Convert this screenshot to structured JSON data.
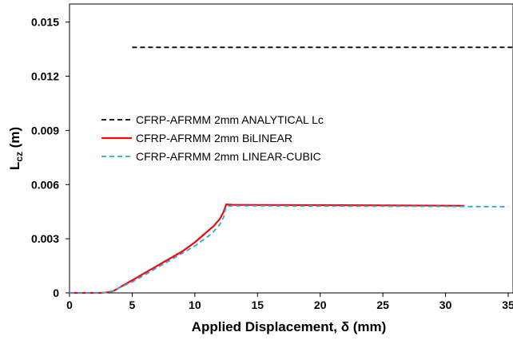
{
  "chart_data": {
    "type": "line",
    "title": "",
    "xlabel": "Applied Displacement, δ (mm)",
    "ylabel": "L",
    "ylabel_sub": "cz",
    "ylabel_unit": " (m)",
    "xlim": [
      0,
      35
    ],
    "ylim": [
      0,
      0.016
    ],
    "xticks": [
      0,
      5,
      10,
      15,
      20,
      25,
      30,
      35
    ],
    "xtick_labels": [
      "0",
      "5",
      "10",
      "15",
      "20",
      "25",
      "30",
      "35"
    ],
    "yticks": [
      0,
      0.003,
      0.006,
      0.009,
      0.012,
      0.015
    ],
    "ytick_labels": [
      "0",
      "0.003",
      "0.006",
      "0.009",
      "0.012",
      "0.015"
    ],
    "grid": false,
    "legend_position": "center-left",
    "series": [
      {
        "name": "CFRP-AFRMM 2mm ANALYTICAL Lc",
        "color": "#000000",
        "dash": "dashed",
        "x": [
          5,
          35.5
        ],
        "y": [
          0.0136,
          0.0136
        ]
      },
      {
        "name": "CFRP-AFRMM 2mm BiLINEAR",
        "color": "#ff0000",
        "dash": "solid",
        "x": [
          0,
          2.5,
          3,
          3.5,
          4,
          5,
          6,
          7,
          8,
          9,
          10,
          11,
          11.5,
          12,
          12.3,
          12.5,
          13,
          15,
          20,
          25,
          30,
          31.5
        ],
        "y": [
          0,
          0,
          3e-05,
          0.0001,
          0.0003,
          0.0007,
          0.0011,
          0.0015,
          0.0019,
          0.0023,
          0.0028,
          0.0034,
          0.0037,
          0.0041,
          0.0045,
          0.0049,
          0.00488,
          0.00487,
          0.00486,
          0.00485,
          0.00483,
          0.00482
        ]
      },
      {
        "name": "CFRP-AFRMM 2mm LINEAR-CUBIC",
        "color": "#2aa7e0",
        "dash": "dashed",
        "x": [
          0,
          2.5,
          3,
          3.5,
          4,
          5,
          6,
          7,
          8,
          9,
          10,
          11,
          11.5,
          12,
          12.3,
          12.5,
          13,
          15,
          20,
          25,
          30,
          35
        ],
        "y": [
          0,
          0,
          3e-05,
          0.0001,
          0.0003,
          0.0006,
          0.001,
          0.0014,
          0.0018,
          0.0022,
          0.0026,
          0.0031,
          0.0034,
          0.0038,
          0.0042,
          0.0048,
          0.00482,
          0.00482,
          0.00481,
          0.0048,
          0.00479,
          0.00477
        ]
      }
    ]
  }
}
